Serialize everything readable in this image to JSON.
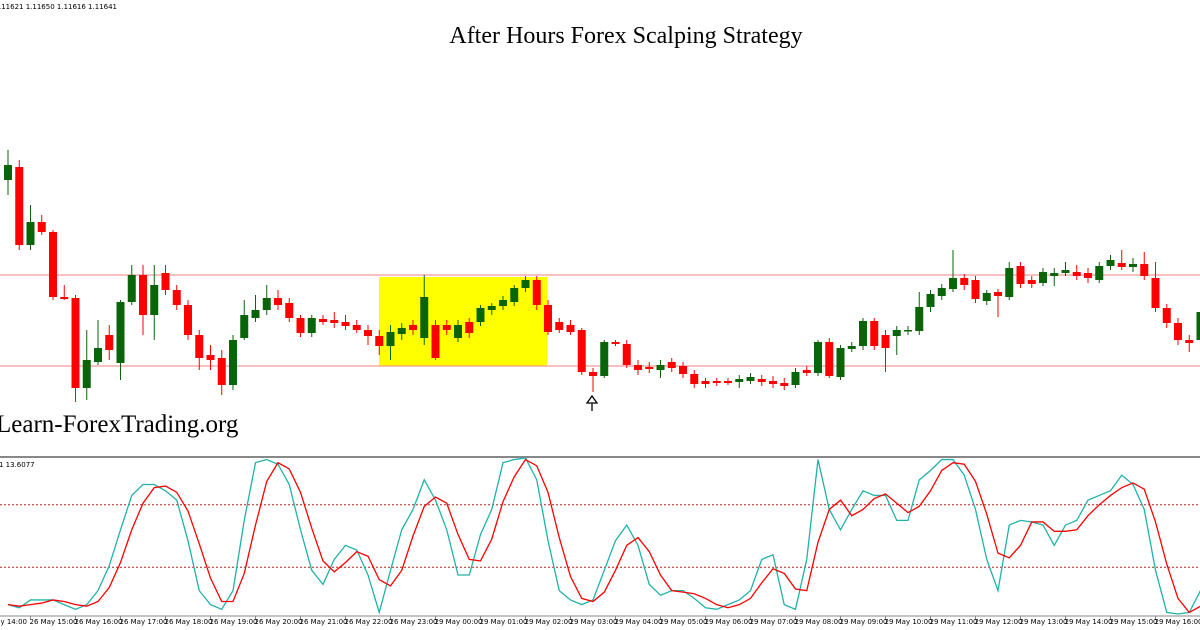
{
  "chart_data": [
    {
      "type": "candlestick",
      "title": "After Hours Forex Scalping Strategy",
      "annotation": "Learn-ForexTrading.org",
      "ohlc_info": ".11621 1.11650 1.11616 1.11641",
      "up_color": "#0a640a",
      "down_color": "#ff0000",
      "level_color": "#f08080",
      "ylim": [
        1.11545,
        1.12
      ],
      "levels": [
        1.11725,
        1.11634
      ],
      "axis_left_label": "y 14:00",
      "categories": [
        null,
        null,
        "26 May 15:00",
        null,
        null,
        null,
        "26 May 16:00",
        null,
        null,
        null,
        "26 May 17:00",
        null,
        null,
        null,
        "26 May 18:00",
        null,
        null,
        null,
        "26 May 19:00",
        null,
        null,
        null,
        "26 May 20:00",
        null,
        null,
        null,
        "26 May 21:00",
        null,
        null,
        null,
        "26 May 22:00",
        null,
        null,
        null,
        "26 May 23:00",
        null,
        null,
        null,
        "29 May 00:00",
        null,
        null,
        null,
        "29 May 01:00",
        null,
        null,
        null,
        "29 May 02:00",
        null,
        null,
        null,
        "29 May 03:00",
        null,
        null,
        null,
        "29 May 04:00",
        null,
        null,
        null,
        "29 May 05:00",
        null,
        null,
        null,
        "29 May 06:00",
        null,
        null,
        null,
        "29 May 07:00",
        null,
        null,
        null,
        "29 May 08:00",
        null,
        null,
        null,
        "29 May 09:00",
        null,
        null,
        null,
        "29 May 10:00",
        null,
        null,
        null,
        "29 May 11:00",
        null,
        null,
        null,
        "29 May 12:00",
        null,
        null,
        null,
        "29 May 13:00",
        null,
        null,
        null,
        "29 May 14:00",
        null,
        null,
        null,
        "29 May 15:00",
        null,
        null,
        null,
        "29 May 16:00",
        null,
        null,
        null,
        null
      ],
      "open": [
        1.1182,
        1.11833,
        1.11755,
        1.11778,
        1.11768,
        1.11703,
        1.11702,
        1.11612,
        1.11638,
        1.11665,
        1.11637,
        1.11698,
        1.11725,
        1.11685,
        1.11727,
        1.1171,
        1.11695,
        1.11665,
        1.11645,
        1.11642,
        1.11615,
        1.11662,
        1.11682,
        1.1169,
        1.11702,
        1.11697,
        1.11682,
        1.11667,
        1.11681,
        1.1168,
        1.11678,
        1.11675,
        1.1167,
        1.11664,
        1.11654,
        1.11666,
        1.11675,
        1.11662,
        1.11675,
        1.11675,
        1.11662,
        1.11678,
        1.11678,
        1.1169,
        1.11694,
        1.11698,
        1.11712,
        1.1172,
        1.11695,
        1.11678,
        1.11675,
        1.1167,
        1.11628,
        1.11624,
        1.11658,
        1.11656,
        1.11635,
        1.11633,
        1.1163,
        1.11638,
        1.11634,
        1.11626,
        1.11619,
        1.11619,
        1.11619,
        1.11618,
        1.11619,
        1.11621,
        1.11619,
        1.11617,
        1.11615,
        1.1163,
        1.11627,
        1.11658,
        1.11623,
        1.11651,
        1.11654,
        1.11679,
        1.11665,
        1.11664,
        1.11669,
        1.11669,
        1.11693,
        1.11704,
        1.11711,
        1.11722,
        1.1172,
        1.11699,
        1.11708,
        1.11703,
        1.11734,
        1.1172,
        1.11717,
        1.11724,
        1.11727,
        1.11728,
        1.11727,
        1.1172,
        1.11734,
        1.11737,
        1.11733,
        1.11736,
        1.11722,
        1.11692,
        1.11677,
        1.1166,
        1.1166
      ],
      "high": [
        1.1185,
        1.1184,
        1.11795,
        1.11785,
        1.1177,
        1.11715,
        1.11705,
        1.1167,
        1.1168,
        1.11675,
        1.117,
        1.11735,
        1.11735,
        1.11735,
        1.11735,
        1.11715,
        1.117,
        1.1167,
        1.11655,
        1.1165,
        1.11665,
        1.117,
        1.11705,
        1.11715,
        1.1171,
        1.11702,
        1.11685,
        1.11685,
        1.11685,
        1.11688,
        1.11685,
        1.1168,
        1.11675,
        1.1167,
        1.11675,
        1.11677,
        1.1168,
        1.11725,
        1.1168,
        1.1168,
        1.1168,
        1.11682,
        1.11695,
        1.11697,
        1.11704,
        1.11715,
        1.11724,
        1.11724,
        1.117,
        1.11682,
        1.1168,
        1.11672,
        1.11632,
        1.1166,
        1.1166,
        1.1166,
        1.1164,
        1.11638,
        1.1164,
        1.11642,
        1.11638,
        1.1163,
        1.11622,
        1.11622,
        1.11622,
        1.11625,
        1.11627,
        1.11625,
        1.11624,
        1.11622,
        1.11632,
        1.11634,
        1.1166,
        1.11662,
        1.11655,
        1.11658,
        1.11682,
        1.11682,
        1.1167,
        1.11674,
        1.11674,
        1.11708,
        1.1171,
        1.11716,
        1.1175,
        1.11726,
        1.11724,
        1.1171,
        1.11711,
        1.11738,
        1.11738,
        1.11724,
        1.11732,
        1.11732,
        1.11738,
        1.11735,
        1.11732,
        1.11738,
        1.11745,
        1.1175,
        1.11742,
        1.11748,
        1.11738,
        1.11696,
        1.11682,
        1.11665,
        1.11695
      ],
      "low": [
        1.11805,
        1.1175,
        1.1175,
        1.11765,
        1.117,
        1.117,
        1.11598,
        1.116,
        1.11635,
        1.1164,
        1.1162,
        1.11695,
        1.11665,
        1.1166,
        1.11705,
        1.1169,
        1.1166,
        1.1163,
        1.1163,
        1.11605,
        1.1161,
        1.1166,
        1.11678,
        1.11685,
        1.1169,
        1.11678,
        1.11663,
        1.11663,
        1.11675,
        1.11672,
        1.1167,
        1.11667,
        1.11655,
        1.11645,
        1.1164,
        1.1166,
        1.11665,
        1.11655,
        1.1164,
        1.11665,
        1.11658,
        1.11662,
        1.11674,
        1.11685,
        1.1169,
        1.11694,
        1.11708,
        1.1169,
        1.11665,
        1.11667,
        1.11665,
        1.11625,
        1.11608,
        1.11622,
        1.11654,
        1.11632,
        1.11625,
        1.11627,
        1.11622,
        1.11628,
        1.11622,
        1.11612,
        1.11612,
        1.11614,
        1.11615,
        1.11612,
        1.11616,
        1.11614,
        1.11612,
        1.1161,
        1.11612,
        1.11624,
        1.11624,
        1.11622,
        1.1162,
        1.11648,
        1.1165,
        1.1165,
        1.11628,
        1.11645,
        1.11665,
        1.11665,
        1.11688,
        1.117,
        1.11708,
        1.1171,
        1.11697,
        1.11695,
        1.11683,
        1.117,
        1.11712,
        1.11712,
        1.11714,
        1.11714,
        1.11724,
        1.1172,
        1.11717,
        1.11717,
        1.1173,
        1.1173,
        1.11728,
        1.1172,
        1.11688,
        1.11672,
        1.11655,
        1.11648,
        1.11655
      ],
      "close": [
        1.11835,
        1.11755,
        1.11778,
        1.11768,
        1.11703,
        1.11701,
        1.11612,
        1.1164,
        1.11652,
        1.1165,
        1.11698,
        1.11725,
        1.11685,
        1.11715,
        1.1171,
        1.11695,
        1.11665,
        1.11642,
        1.1164,
        1.11615,
        1.1166,
        1.11685,
        1.1169,
        1.11702,
        1.11695,
        1.11682,
        1.11667,
        1.11682,
        1.11678,
        1.11677,
        1.11674,
        1.1167,
        1.11664,
        1.11654,
        1.11668,
        1.11672,
        1.1167,
        1.11703,
        1.11642,
        1.1167,
        1.11675,
        1.11667,
        1.11692,
        1.11694,
        1.117,
        1.11712,
        1.1172,
        1.11695,
        1.11668,
        1.1167,
        1.11668,
        1.11628,
        1.11624,
        1.11658,
        1.11656,
        1.11635,
        1.1163,
        1.11631,
        1.11635,
        1.11632,
        1.11626,
        1.11616,
        1.11616,
        1.11617,
        1.11617,
        1.11621,
        1.11623,
        1.11618,
        1.11616,
        1.11614,
        1.11628,
        1.11627,
        1.11658,
        1.11624,
        1.11652,
        1.11654,
        1.11679,
        1.11654,
        1.11652,
        1.1167,
        1.1167,
        1.11693,
        1.11706,
        1.11712,
        1.11722,
        1.11715,
        1.11701,
        1.11707,
        1.11704,
        1.11732,
        1.11716,
        1.11716,
        1.11728,
        1.11727,
        1.1173,
        1.11724,
        1.11722,
        1.11734,
        1.1174,
        1.11733,
        1.11736,
        1.11724,
        1.11692,
        1.11677,
        1.1166,
        1.11657,
        1.11688
      ]
    },
    {
      "type": "line",
      "label": "1 13.6077",
      "ylim": [
        0,
        100
      ],
      "levels": [
        70,
        30
      ],
      "level_color": "#b22222",
      "series": [
        {
          "color": "#20b2aa",
          "values": [
            6,
            4,
            9,
            9,
            9,
            6,
            3,
            6,
            15,
            31,
            54,
            76,
            83,
            83,
            79,
            73,
            47,
            15,
            6,
            3,
            15,
            60,
            97,
            99,
            96,
            83,
            54,
            28,
            19,
            35,
            44,
            41,
            25,
            1,
            28,
            54,
            67,
            86,
            73,
            54,
            25,
            25,
            51,
            67,
            97,
            99,
            100,
            86,
            47,
            15,
            9,
            6,
            9,
            28,
            47,
            57,
            44,
            19,
            12,
            15,
            15,
            10,
            4,
            3,
            6,
            9,
            15,
            35,
            38,
            6,
            3,
            35,
            99,
            67,
            54,
            67,
            79,
            76,
            76,
            60,
            60,
            86,
            92,
            99,
            99,
            89,
            67,
            35,
            15,
            57,
            60,
            59,
            57,
            44,
            57,
            60,
            73,
            76,
            79,
            89,
            83,
            67,
            28,
            1,
            0,
            1,
            15
          ]
        },
        {
          "color": "#ff0000",
          "values": [
            6,
            5,
            6,
            7,
            9,
            8,
            6,
            5,
            8,
            17,
            33,
            54,
            71,
            81,
            82,
            78,
            66,
            45,
            23,
            8,
            8,
            26,
            57,
            85,
            97,
            93,
            78,
            55,
            34,
            27,
            33,
            40,
            37,
            22,
            18,
            28,
            50,
            69,
            75,
            71,
            51,
            35,
            34,
            48,
            72,
            88,
            99,
            95,
            78,
            49,
            24,
            10,
            8,
            14,
            28,
            44,
            49,
            40,
            25,
            15,
            14,
            13,
            10,
            6,
            4,
            6,
            10,
            20,
            29,
            26,
            16,
            15,
            46,
            67,
            73,
            63,
            67,
            74,
            77,
            71,
            65,
            69,
            79,
            92,
            97,
            96,
            85,
            64,
            39,
            36,
            44,
            59,
            59,
            53,
            53,
            54,
            63,
            70,
            76,
            81,
            84,
            80,
            59,
            32,
            10,
            1,
            5
          ]
        }
      ]
    }
  ]
}
